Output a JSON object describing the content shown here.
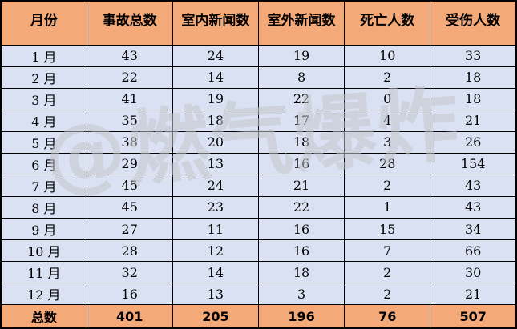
{
  "chart_data": {
    "type": "table",
    "title": "",
    "columns": [
      "月份",
      "事故总数",
      "室内新闻数",
      "室外新闻数",
      "死亡人数",
      "受伤人数"
    ],
    "rows": [
      [
        "1 月",
        "43",
        "24",
        "19",
        "10",
        "33"
      ],
      [
        "2 月",
        "22",
        "14",
        "8",
        "2",
        "18"
      ],
      [
        "3 月",
        "41",
        "19",
        "22",
        "0",
        "18"
      ],
      [
        "4 月",
        "35",
        "18",
        "17",
        "4",
        "21"
      ],
      [
        "5 月",
        "38",
        "20",
        "18",
        "3",
        "26"
      ],
      [
        "6 月",
        "29",
        "13",
        "16",
        "28",
        "154"
      ],
      [
        "7 月",
        "45",
        "24",
        "21",
        "2",
        "43"
      ],
      [
        "8 月",
        "45",
        "23",
        "22",
        "1",
        "43"
      ],
      [
        "9 月",
        "27",
        "11",
        "16",
        "15",
        "34"
      ],
      [
        "10 月",
        "28",
        "12",
        "16",
        "7",
        "66"
      ],
      [
        "11 月",
        "32",
        "14",
        "18",
        "2",
        "30"
      ],
      [
        "12 月",
        "16",
        "13",
        "3",
        "2",
        "21"
      ],
      [
        "总数",
        "401",
        "205",
        "196",
        "76",
        "507"
      ]
    ],
    "totals_row_label": "总数",
    "layout": "grid-on, black 1px inner borders, 2px outer border"
  },
  "watermark": {
    "text": "@燃气爆炸"
  },
  "colors": {
    "header_bg": "#f4a978",
    "row_bg": "#dae1f3",
    "border": "#000000",
    "text": "#000000",
    "watermark": "#c4c6cc"
  }
}
